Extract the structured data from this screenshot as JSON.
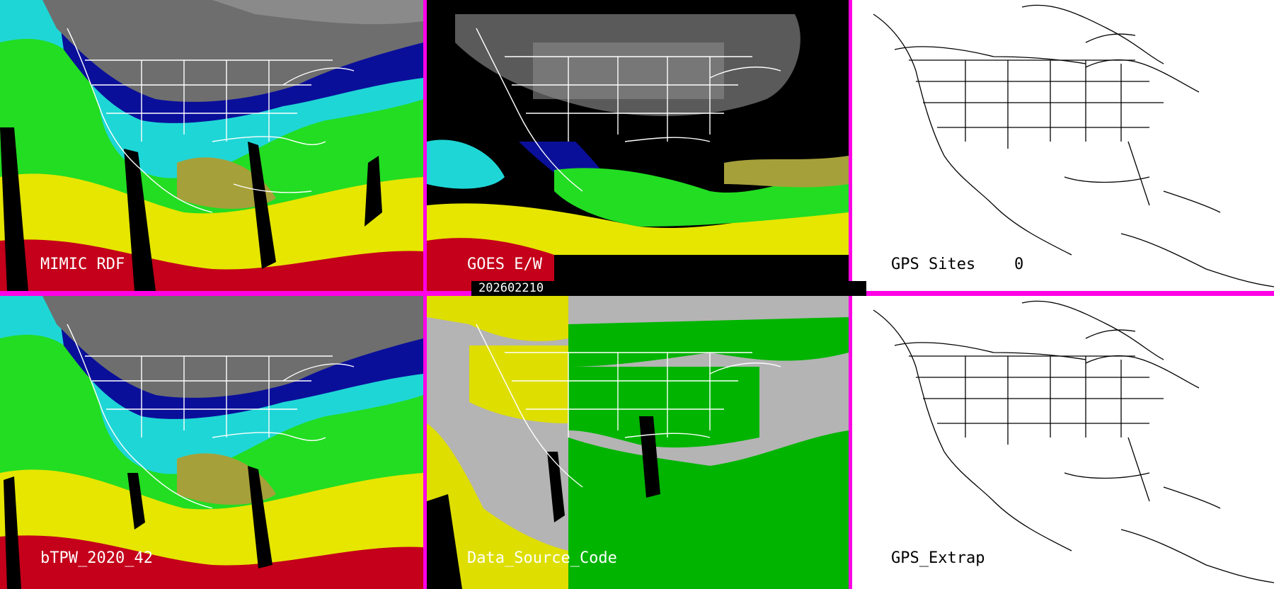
{
  "panels": {
    "top_left": {
      "label": "MIMIC RDF"
    },
    "top_middle": {
      "label": "GOES E/W"
    },
    "top_right": {
      "label": "GPS Sites",
      "value": "0"
    },
    "bottom_left": {
      "label": "bTPW_2020_42"
    },
    "bottom_middle": {
      "label": "Data_Source_Code"
    },
    "bottom_right": {
      "label": "GPS_Extrap"
    }
  },
  "timestamp": "202602210",
  "colors": {
    "divider": "#ff00e6",
    "gray_cloud": "#6e6e6e",
    "dark_blue": "#0a0f9a",
    "cyan": "#1fd6d6",
    "green": "#22dd22",
    "yellow": "#e6e600",
    "olive": "#a6a03a",
    "red": "#c4001a",
    "source_gray": "#b4b4b4",
    "source_yellow": "#dede00",
    "source_green": "#00b400"
  }
}
